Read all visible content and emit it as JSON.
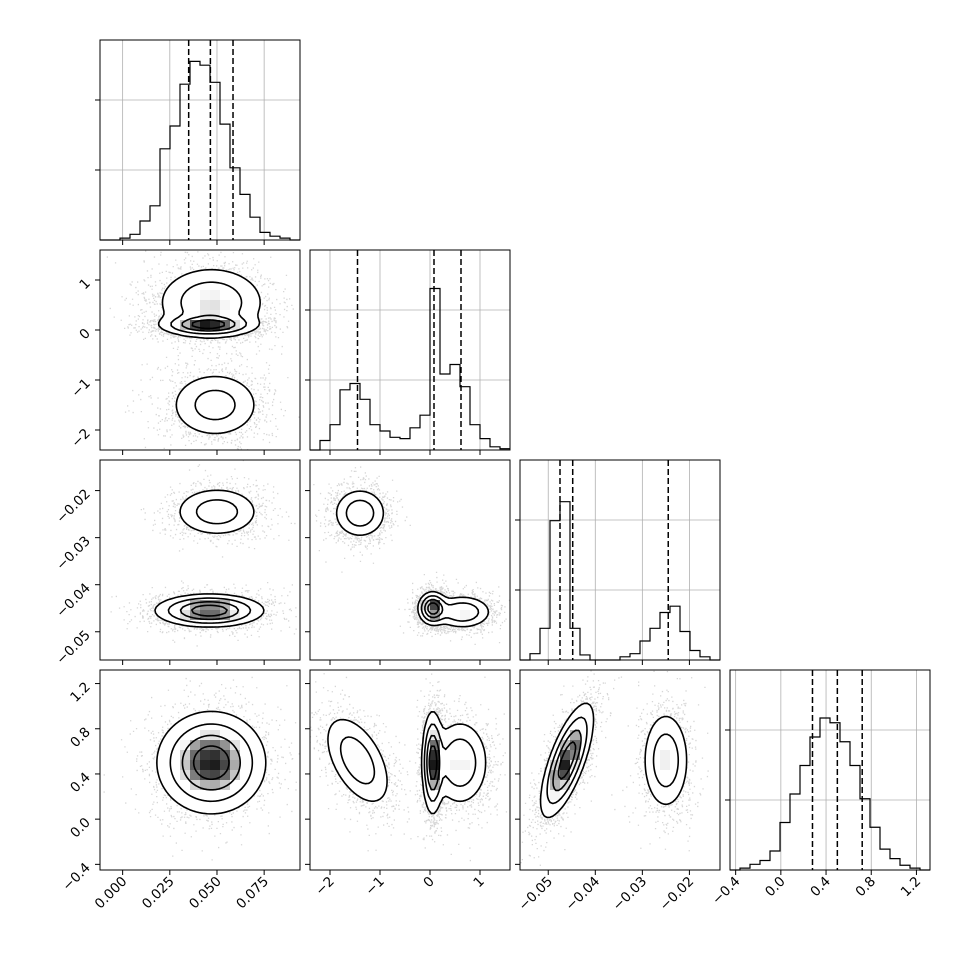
{
  "chart_data": {
    "type": "corner",
    "grid": true,
    "variables": [
      {
        "range": [
          -0.012,
          0.094
        ],
        "ticks": [
          0.0,
          0.025,
          0.05,
          0.075
        ],
        "tick_labels": [
          "0.000",
          "0.025",
          "0.050",
          "0.075"
        ],
        "quantiles": [
          0.035,
          0.0465,
          0.0585
        ],
        "hist_bins": [
          0.0,
          0.0,
          0.001,
          0.003,
          0.01,
          0.018,
          0.048,
          0.06,
          0.082,
          0.094,
          0.092,
          0.083,
          0.061,
          0.038,
          0.024,
          0.012,
          0.004,
          0.002,
          0.001,
          0.0
        ],
        "hist_max": 0.1
      },
      {
        "range": [
          -2.4,
          1.6
        ],
        "ticks": [
          -2,
          -1,
          0,
          1
        ],
        "tick_labels": [
          "−2",
          "−1",
          "0",
          "1"
        ],
        "quantiles": [
          -1.45,
          0.08,
          0.62
        ],
        "hist_bins": [
          0.0,
          0.015,
          0.04,
          0.095,
          0.105,
          0.08,
          0.04,
          0.03,
          0.02,
          0.018,
          0.035,
          0.055,
          0.255,
          0.12,
          0.135,
          0.1,
          0.04,
          0.018,
          0.005,
          0.002
        ],
        "hist_max": 0.3
      },
      {
        "range": [
          -0.056,
          -0.0135
        ],
        "ticks": [
          -0.05,
          -0.04,
          -0.03,
          -0.02
        ],
        "tick_labels": [
          "−0.05",
          "−0.04",
          "−0.03",
          "−0.02"
        ],
        "quantiles": [
          -0.0475,
          -0.0448,
          -0.0245
        ],
        "hist_bins": [
          0.0,
          0.01,
          0.05,
          0.22,
          0.25,
          0.05,
          0.008,
          0.0,
          0.0,
          0.0,
          0.005,
          0.01,
          0.03,
          0.05,
          0.075,
          0.085,
          0.045,
          0.015,
          0.005,
          0.0
        ],
        "hist_max": 0.3
      },
      {
        "range": [
          -0.45,
          1.32
        ],
        "ticks": [
          -0.4,
          0.0,
          0.4,
          0.8,
          1.2
        ],
        "tick_labels": [
          "−0.4",
          "0.0",
          "0.4",
          "0.8",
          "1.2"
        ],
        "quantiles": [
          0.28,
          0.5,
          0.72
        ],
        "hist_bins": [
          0.0,
          0.002,
          0.006,
          0.01,
          0.02,
          0.05,
          0.08,
          0.11,
          0.14,
          0.16,
          0.155,
          0.135,
          0.11,
          0.075,
          0.045,
          0.022,
          0.012,
          0.005,
          0.002,
          0.0
        ],
        "hist_max": 0.2
      }
    ],
    "pairs": [
      {
        "row": 1,
        "col": 0,
        "blobs": [
          {
            "cx": 0.047,
            "cy": 0.55,
            "sx": 0.015,
            "sy": 0.38,
            "peak": 0.7,
            "rot": 0
          },
          {
            "cx": 0.045,
            "cy": 0.1,
            "sx": 0.012,
            "sy": 0.1,
            "peak": 1.0,
            "rot": 0
          },
          {
            "cx": 0.049,
            "cy": -1.5,
            "sx": 0.013,
            "sy": 0.36,
            "peak": 0.55,
            "rot": 0
          }
        ]
      },
      {
        "row": 2,
        "col": 0,
        "blobs": [
          {
            "cx": 0.05,
            "cy": -0.0245,
            "sx": 0.012,
            "sy": 0.0028,
            "peak": 0.45,
            "rot": 0
          },
          {
            "cx": 0.046,
            "cy": -0.0455,
            "sx": 0.014,
            "sy": 0.0017,
            "peak": 1.0,
            "rot": 0
          }
        ]
      },
      {
        "row": 2,
        "col": 1,
        "blobs": [
          {
            "cx": -1.4,
            "cy": -0.0248,
            "sx": 0.28,
            "sy": 0.0028,
            "peak": 0.5,
            "rot": 0
          },
          {
            "cx": 0.05,
            "cy": -0.045,
            "sx": 0.14,
            "sy": 0.0017,
            "peak": 1.0,
            "rot": 0
          },
          {
            "cx": 0.65,
            "cy": -0.0458,
            "sx": 0.3,
            "sy": 0.0018,
            "peak": 0.55,
            "rot": 0
          }
        ]
      },
      {
        "row": 3,
        "col": 0,
        "blobs": [
          {
            "cx": 0.047,
            "cy": 0.5,
            "sx": 0.014,
            "sy": 0.22,
            "peak": 1.0,
            "rot": 0
          }
        ]
      },
      {
        "row": 3,
        "col": 1,
        "blobs": [
          {
            "cx": -1.45,
            "cy": 0.52,
            "sx": 0.28,
            "sy": 0.24,
            "peak": 0.5,
            "rot": -0.5
          },
          {
            "cx": 0.05,
            "cy": 0.5,
            "sx": 0.1,
            "sy": 0.22,
            "peak": 1.0,
            "rot": 0
          },
          {
            "cx": 0.6,
            "cy": 0.5,
            "sx": 0.3,
            "sy": 0.2,
            "peak": 0.55,
            "rot": 0
          }
        ]
      },
      {
        "row": 3,
        "col": 2,
        "blobs": [
          {
            "cx": -0.046,
            "cy": 0.52,
            "sx": 0.0018,
            "sy": 0.26,
            "peak": 1.0,
            "rot": 0.35
          },
          {
            "cx": -0.025,
            "cy": 0.52,
            "sx": 0.0026,
            "sy": 0.23,
            "peak": 0.5,
            "rot": 0
          }
        ]
      }
    ]
  }
}
